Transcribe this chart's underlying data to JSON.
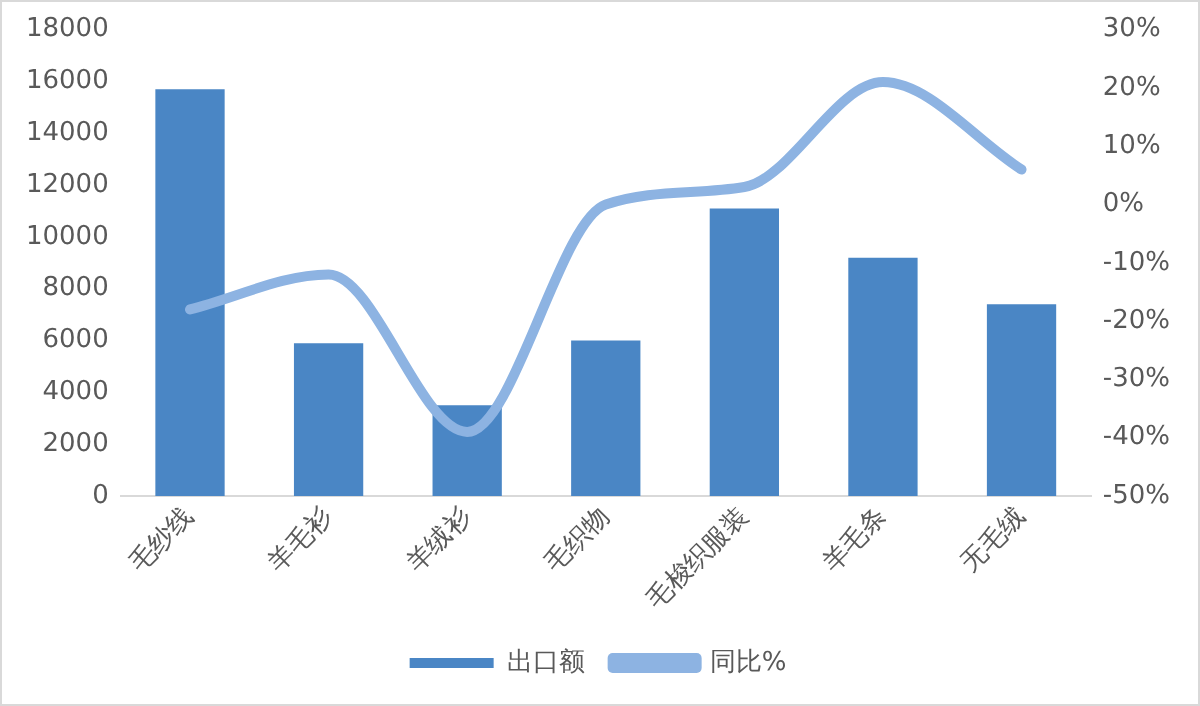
{
  "chart_data": {
    "type": "bar",
    "categories": [
      "毛纱线",
      "羊毛衫",
      "羊绒衫",
      "毛织物",
      "毛梭织服装",
      "羊毛条",
      "无毛绒"
    ],
    "series": [
      {
        "name": "出口额",
        "color": "#4a86c5",
        "values": [
          15700,
          5900,
          3500,
          6000,
          11100,
          9200,
          7400
        ]
      },
      {
        "name": "同比%",
        "type": "line",
        "axis": "y2",
        "color": "#8db3e2",
        "values": [
          -18,
          -12,
          -39,
          0,
          3,
          21,
          6
        ]
      }
    ],
    "ylim": [
      0,
      18000
    ],
    "yticks": [
      0,
      2000,
      4000,
      6000,
      8000,
      10000,
      12000,
      14000,
      16000,
      18000
    ],
    "y2lim": [
      -50,
      30
    ],
    "y2ticks": [
      {
        "value": -50,
        "label": "-50%"
      },
      {
        "value": -40,
        "label": "-40%"
      },
      {
        "value": -30,
        "label": "-30%"
      },
      {
        "value": -20,
        "label": "-20%"
      },
      {
        "value": -10,
        "label": "-10%"
      },
      {
        "value": 0,
        "label": "0%"
      },
      {
        "value": 10,
        "label": "10%"
      },
      {
        "value": 20,
        "label": "20%"
      },
      {
        "value": 30,
        "label": "30%"
      }
    ],
    "grid": false,
    "legend": "bottom"
  }
}
